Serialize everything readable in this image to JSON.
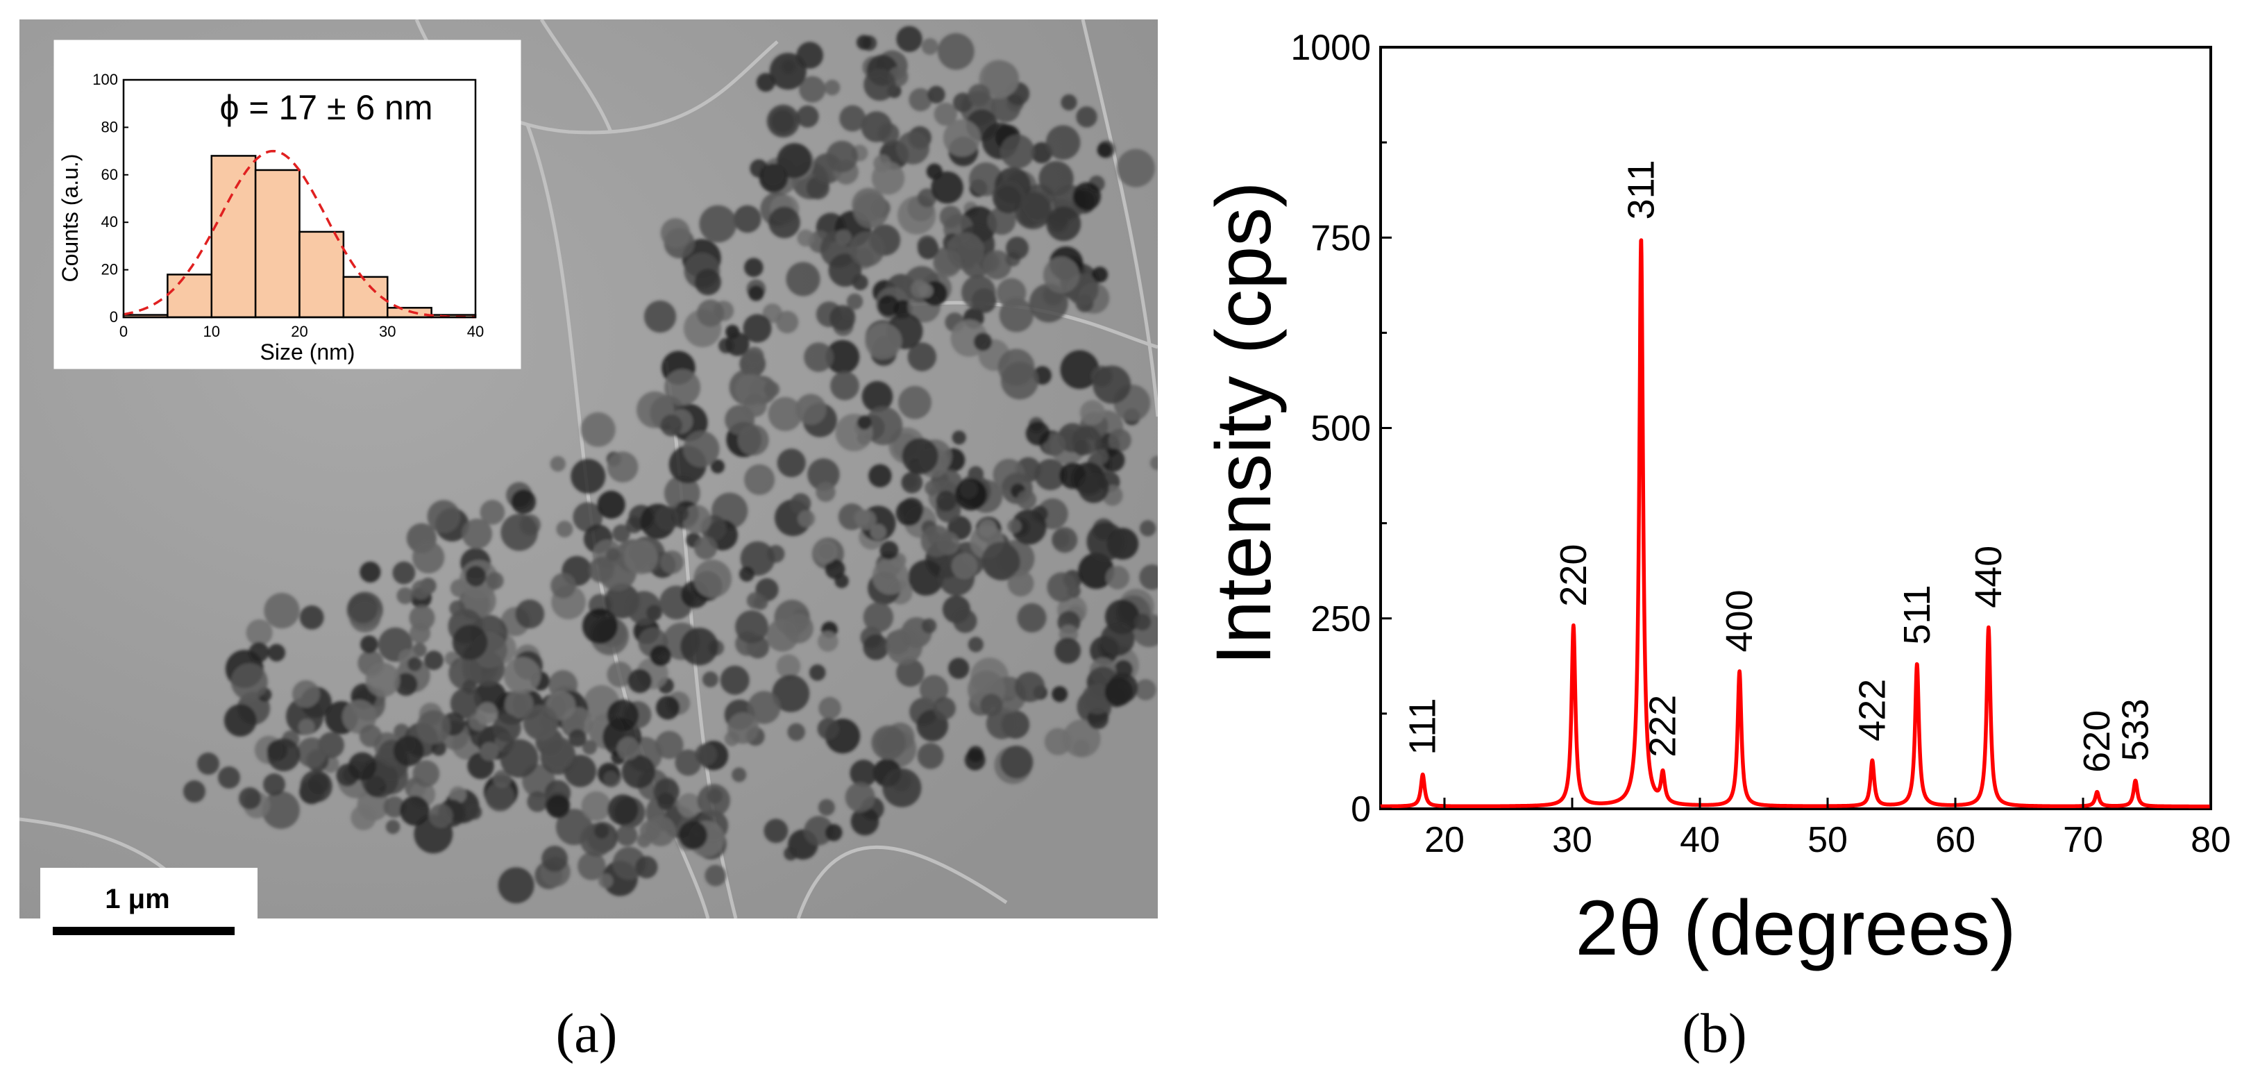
{
  "panel_a": {
    "label": "(a)",
    "scale_bar_label": "1 μm"
  },
  "panel_b": {
    "label": "(b)"
  },
  "colors": {
    "xrd_line": "#ff0000",
    "hist_fill": "#f9c9a5",
    "hist_fit": "#e02020",
    "tem_background": "#a0a0a0",
    "particle_dark": "#303030"
  },
  "chart_data": [
    {
      "type": "bar",
      "title": "ϕ = 17 ± 6 nm",
      "xlabel": "Size (nm)",
      "ylabel": "Counts (a.u.)",
      "xlim": [
        0,
        40
      ],
      "ylim": [
        0,
        100
      ],
      "x_ticks": [
        "0",
        "10",
        "20",
        "30",
        "40"
      ],
      "y_ticks": [
        "0",
        "20",
        "40",
        "60",
        "80",
        "100"
      ],
      "bins": [
        [
          0,
          5
        ],
        [
          5,
          10
        ],
        [
          10,
          15
        ],
        [
          15,
          20
        ],
        [
          20,
          25
        ],
        [
          25,
          30
        ],
        [
          30,
          35
        ],
        [
          35,
          40
        ]
      ],
      "values": [
        1,
        18,
        68,
        62,
        36,
        17,
        4,
        1
      ],
      "fit": {
        "type": "gaussian",
        "mean": 17,
        "sd": 6,
        "peak": 70,
        "style": "dashed"
      }
    },
    {
      "type": "line",
      "xlabel": "2θ (degrees)",
      "ylabel": "Intensity (cps)",
      "xlim": [
        15,
        80
      ],
      "ylim": [
        0,
        1000
      ],
      "x_ticks": [
        "20",
        "30",
        "40",
        "50",
        "60",
        "70",
        "80"
      ],
      "y_ticks": [
        "0",
        "250",
        "500",
        "750",
        "1000"
      ],
      "baseline": 3,
      "peaks": [
        {
          "label": "111",
          "x": 18.3,
          "y": 45
        },
        {
          "label": "220",
          "x": 30.1,
          "y": 240
        },
        {
          "label": "311",
          "x": 35.4,
          "y": 748
        },
        {
          "label": "222",
          "x": 37.1,
          "y": 42
        },
        {
          "label": "400",
          "x": 43.1,
          "y": 180
        },
        {
          "label": "422",
          "x": 53.5,
          "y": 63
        },
        {
          "label": "511",
          "x": 57.0,
          "y": 190
        },
        {
          "label": "440",
          "x": 62.6,
          "y": 238
        },
        {
          "label": "620",
          "x": 71.1,
          "y": 22
        },
        {
          "label": "533",
          "x": 74.1,
          "y": 37
        }
      ]
    }
  ]
}
